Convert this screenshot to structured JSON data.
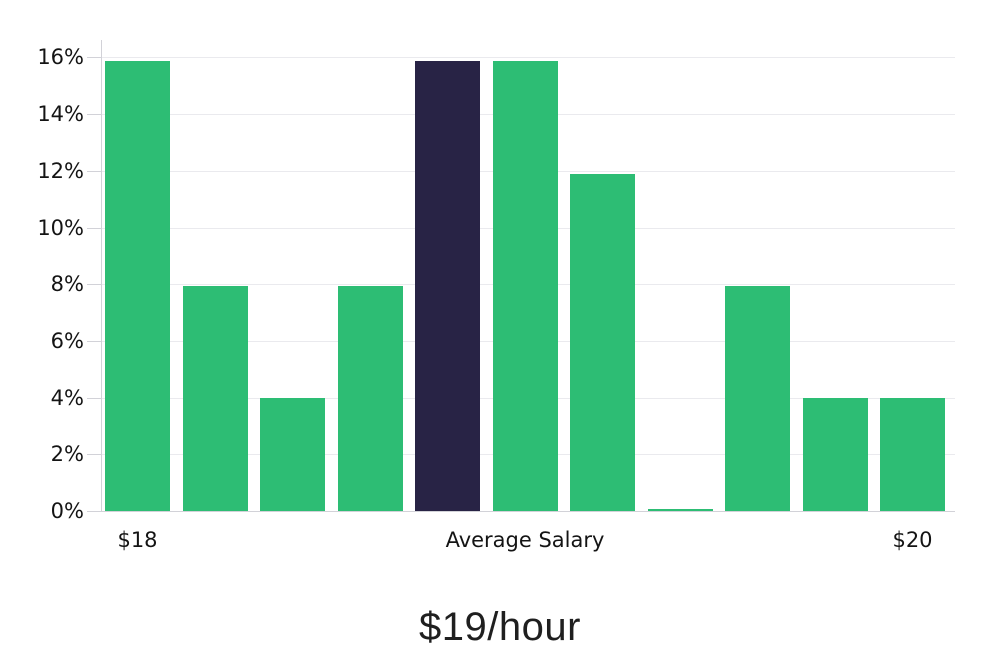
{
  "chart_data": {
    "type": "bar",
    "title": "$19/hour",
    "xlabel": "",
    "ylabel": "",
    "y_ticks": [
      0,
      2,
      4,
      6,
      8,
      10,
      12,
      14,
      16
    ],
    "y_tick_suffix": "%",
    "ylim": [
      0,
      16.7
    ],
    "grid": "horizontal",
    "legend": "none",
    "bars": [
      {
        "value": 15.87,
        "highlight": false
      },
      {
        "value": 7.94,
        "highlight": false
      },
      {
        "value": 3.97,
        "highlight": false
      },
      {
        "value": 7.94,
        "highlight": false
      },
      {
        "value": 15.87,
        "highlight": true
      },
      {
        "value": 15.87,
        "highlight": false
      },
      {
        "value": 11.9,
        "highlight": false
      },
      {
        "value": 0.07,
        "highlight": false
      },
      {
        "value": 7.94,
        "highlight": false
      },
      {
        "value": 3.97,
        "highlight": false
      },
      {
        "value": 3.97,
        "highlight": false
      }
    ],
    "x_tick_labels": [
      {
        "label": "$18",
        "bar_index": 0
      },
      {
        "label": "Average Salary",
        "bar_index": 5
      },
      {
        "label": "$20",
        "bar_index": 10
      }
    ],
    "colors": {
      "bar": "#2dbd74",
      "highlight_bar": "#282345",
      "gridline": "#eaeaee",
      "axis": "#d2d2d8",
      "tick_text": "#141414",
      "title_text": "#1f1f1f"
    }
  }
}
